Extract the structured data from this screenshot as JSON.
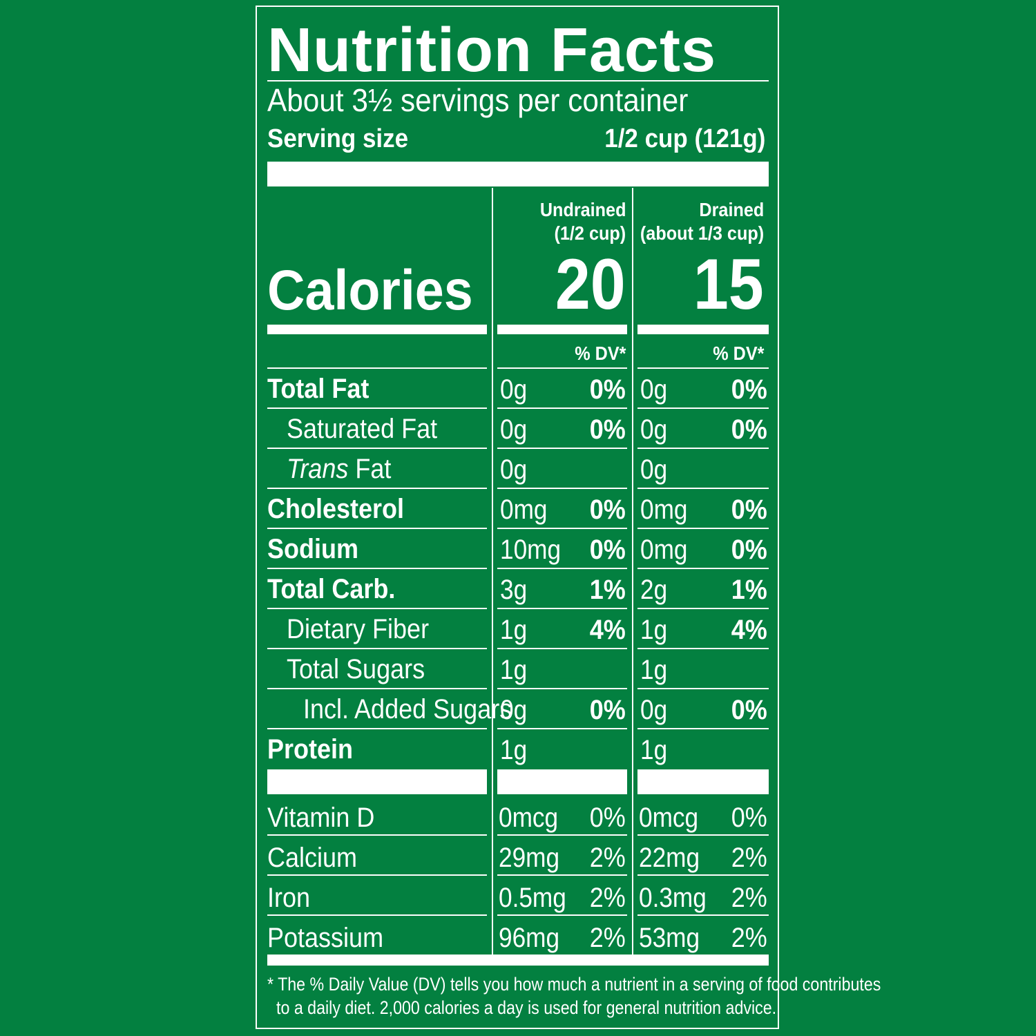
{
  "title": "Nutrition Facts",
  "servings_per_container": "About 3½ servings per container",
  "serving_size_label": "Serving size",
  "serving_size_value": "1/2 cup (121g)",
  "calories_label": "Calories",
  "columns": [
    {
      "line1": "Undrained",
      "line2": "(1/2 cup)",
      "calories": "20",
      "dv_header": "% DV*"
    },
    {
      "line1": "Drained",
      "line2": "(about 1/3 cup)",
      "calories": "15",
      "dv_header": "% DV*"
    }
  ],
  "nutrients": [
    {
      "label": "Total Fat",
      "bold": true,
      "indent": 0,
      "values": [
        [
          "0g",
          "0%"
        ],
        [
          "0g",
          "0%"
        ]
      ]
    },
    {
      "label": "Saturated Fat",
      "bold": false,
      "indent": 1,
      "values": [
        [
          "0g",
          "0%"
        ],
        [
          "0g",
          "0%"
        ]
      ]
    },
    {
      "label_italic": "Trans",
      "label": " Fat",
      "bold": false,
      "indent": 1,
      "values": [
        [
          "0g",
          ""
        ],
        [
          "0g",
          ""
        ]
      ]
    },
    {
      "label": "Cholesterol",
      "bold": true,
      "indent": 0,
      "values": [
        [
          "0mg",
          "0%"
        ],
        [
          "0mg",
          "0%"
        ]
      ]
    },
    {
      "label": "Sodium",
      "bold": true,
      "indent": 0,
      "values": [
        [
          "10mg",
          "0%"
        ],
        [
          "0mg",
          "0%"
        ]
      ]
    },
    {
      "label": "Total Carb.",
      "bold": true,
      "indent": 0,
      "values": [
        [
          "3g",
          "1%"
        ],
        [
          "2g",
          "1%"
        ]
      ]
    },
    {
      "label": "Dietary Fiber",
      "bold": false,
      "indent": 1,
      "values": [
        [
          "1g",
          "4%"
        ],
        [
          "1g",
          "4%"
        ]
      ]
    },
    {
      "label": "Total Sugars",
      "bold": false,
      "indent": 1,
      "values": [
        [
          "1g",
          ""
        ],
        [
          "1g",
          ""
        ]
      ]
    },
    {
      "label": "Incl. Added Sugars",
      "bold": false,
      "indent": 2,
      "values": [
        [
          "0g",
          "0%"
        ],
        [
          "0g",
          "0%"
        ]
      ]
    },
    {
      "label": "Protein",
      "bold": true,
      "indent": 0,
      "values": [
        [
          "1g",
          ""
        ],
        [
          "1g",
          ""
        ]
      ]
    }
  ],
  "vitamins": [
    {
      "label": "Vitamin D",
      "values": [
        [
          "0mcg",
          "0%"
        ],
        [
          "0mcg",
          "0%"
        ]
      ]
    },
    {
      "label": "Calcium",
      "values": [
        [
          "29mg",
          "2%"
        ],
        [
          "22mg",
          "2%"
        ]
      ]
    },
    {
      "label": "Iron",
      "values": [
        [
          "0.5mg",
          "2%"
        ],
        [
          "0.3mg",
          "2%"
        ]
      ]
    },
    {
      "label": "Potassium",
      "values": [
        [
          "96mg",
          "2%"
        ],
        [
          "53mg",
          "2%"
        ]
      ]
    }
  ],
  "footnote_line1": "* The % Daily Value (DV) tells you how much a nutrient in a serving of food contributes",
  "footnote_line2": "to a daily diet. 2,000 calories a day is used for general nutrition advice."
}
